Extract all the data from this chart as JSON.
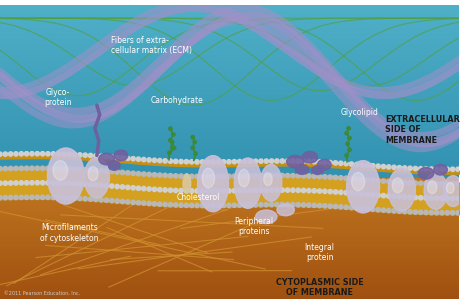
{
  "labels": {
    "fibers_ecm": "Fibers of extra-\ncellular matrix (ECM)",
    "glycoprotein": "Glyco-\nprotein",
    "carbohydrate": "Carbohydrate",
    "glycolipid": "Glycolipid",
    "extracellular": "EXTRACELLULAR\nSIDE OF\nMEMBRANE",
    "cholesterol": "Cholesterol",
    "microfilaments": "Microfilaments\nof cytoskeleton",
    "peripheral": "Peripheral\nproteins",
    "integral": "Integral\nprotein",
    "cytoplasmic": "CYTOPLASMIC SIDE\nOF MEMBRANE",
    "copyright": "©2011 Pearson Education, Inc."
  },
  "colors": {
    "protein_lavender": "#c8c0d8",
    "protein_purple": "#7060a0",
    "protein_purple_dark": "#554880",
    "green_chain": "#3a8a3a",
    "membrane_gold": "#d4a020",
    "membrane_gold2": "#c89010",
    "membrane_silver": "#d0d0d0",
    "membrane_silver2": "#b8b8b8",
    "fiber_purple": "#a090c8",
    "fiber_green": "#50a040",
    "bg_top": "#3090b0",
    "bg_top2": "#50b0c8",
    "bg_bottom": "#c07820",
    "bg_bottom2": "#a05010",
    "cytoskel_color": "#d09030"
  }
}
